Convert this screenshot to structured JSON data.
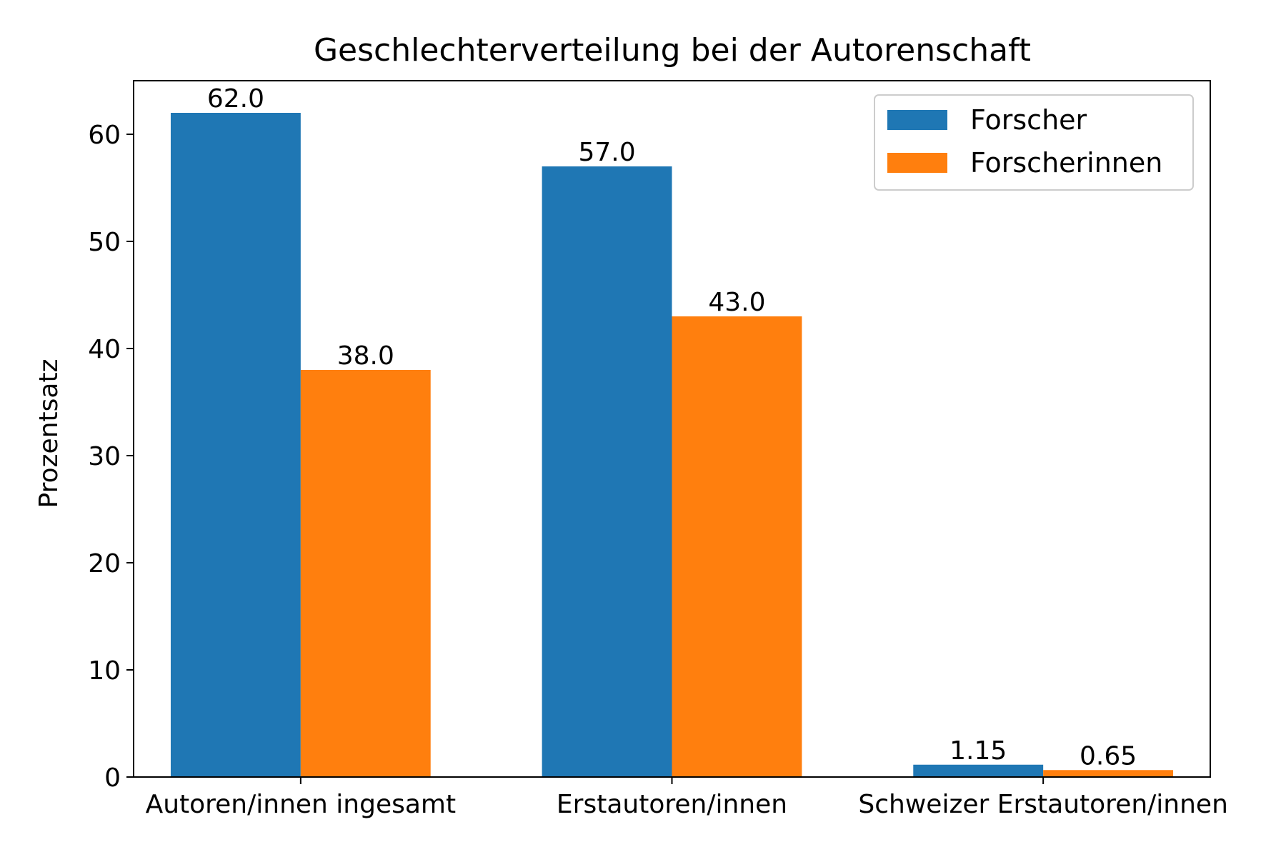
{
  "chart_data": {
    "type": "bar",
    "title": "Geschlechterverteilung bei der Autorenschaft",
    "xlabel": "",
    "ylabel": "Prozentsatz",
    "categories": [
      "Autoren/innen ingesamt",
      "Erstautoren/innen",
      "Schweizer Erstautoren/innen"
    ],
    "series": [
      {
        "name": "Forscher",
        "values": [
          62.0,
          57.0,
          1.15
        ],
        "labels": [
          "62.0",
          "57.0",
          "1.15"
        ],
        "color": "#1f77b4"
      },
      {
        "name": "Forscherinnen",
        "values": [
          38.0,
          43.0,
          0.65
        ],
        "labels": [
          "38.0",
          "43.0",
          "0.65"
        ],
        "color": "#ff7f0e"
      }
    ],
    "ylim": [
      0,
      65
    ],
    "yticks": [
      0,
      10,
      20,
      30,
      40,
      50,
      60
    ],
    "grid": false,
    "legend_position": "top-right"
  }
}
